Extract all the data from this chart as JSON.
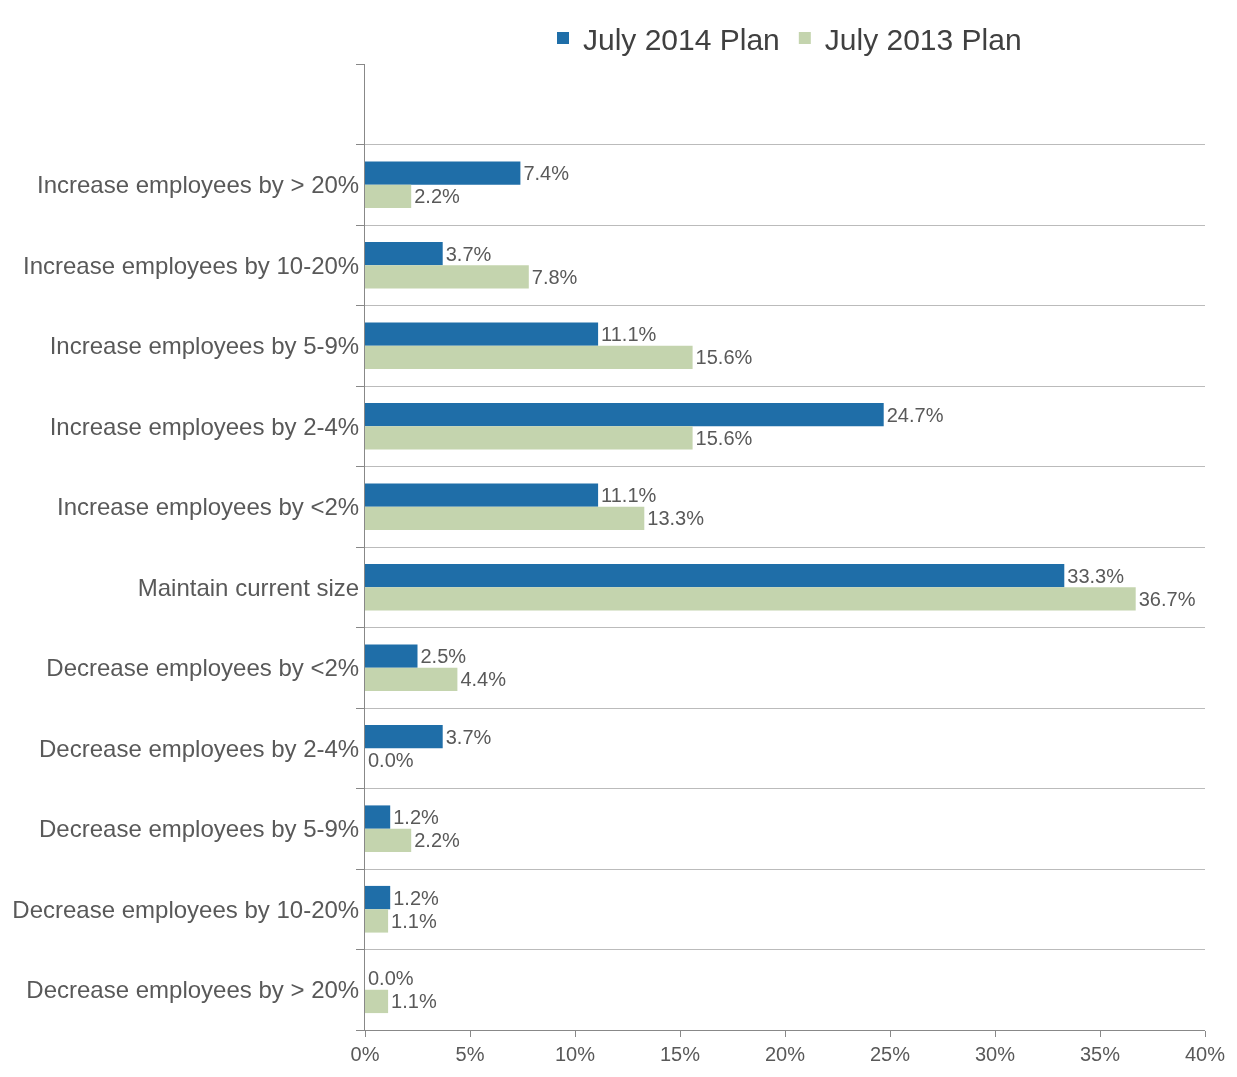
{
  "chart_data": {
    "type": "bar",
    "orientation": "horizontal",
    "categories": [
      null,
      "Increase employees by > 20%",
      "Increase employees by 10-20%",
      "Increase employees by 5-9%",
      "Increase employees by 2-4%",
      "Increase employees by <2%",
      "Maintain current size",
      "Decrease employees by <2%",
      "Decrease employees by 2-4%",
      "Decrease employees by 5-9%",
      "Decrease employees by 10-20%",
      "Decrease employees by > 20%"
    ],
    "series": [
      {
        "name": "July 2014 Plan",
        "color": "#1f6ea8",
        "values": [
          null,
          7.4,
          3.7,
          11.1,
          24.7,
          11.1,
          33.3,
          2.5,
          3.7,
          1.2,
          1.2,
          0.0
        ],
        "value_labels": [
          null,
          "7.4%",
          "3.7%",
          "11.1%",
          "24.7%",
          "11.1%",
          "33.3%",
          "2.5%",
          "3.7%",
          "1.2%",
          "1.2%",
          "0.0%"
        ]
      },
      {
        "name": "July 2013 Plan",
        "color": "#c4d4ae",
        "values": [
          null,
          2.2,
          7.8,
          15.6,
          15.6,
          13.3,
          36.7,
          4.4,
          0.0,
          2.2,
          1.1,
          1.1
        ],
        "value_labels": [
          null,
          "2.2%",
          "7.8%",
          "15.6%",
          "15.6%",
          "13.3%",
          "36.7%",
          "4.4%",
          "0.0%",
          "2.2%",
          "1.1%",
          "1.1%"
        ]
      }
    ],
    "xlim": [
      0,
      40
    ],
    "xticks": [
      {
        "value": 0,
        "label": "0%"
      },
      {
        "value": 5,
        "label": "5%"
      },
      {
        "value": 10,
        "label": "10%"
      },
      {
        "value": 15,
        "label": "15%"
      },
      {
        "value": 20,
        "label": "20%"
      },
      {
        "value": 25,
        "label": "25%"
      },
      {
        "value": 30,
        "label": "30%"
      },
      {
        "value": 35,
        "label": "35%"
      },
      {
        "value": 40,
        "label": "40%"
      }
    ],
    "grid": "y",
    "legend": "top"
  }
}
